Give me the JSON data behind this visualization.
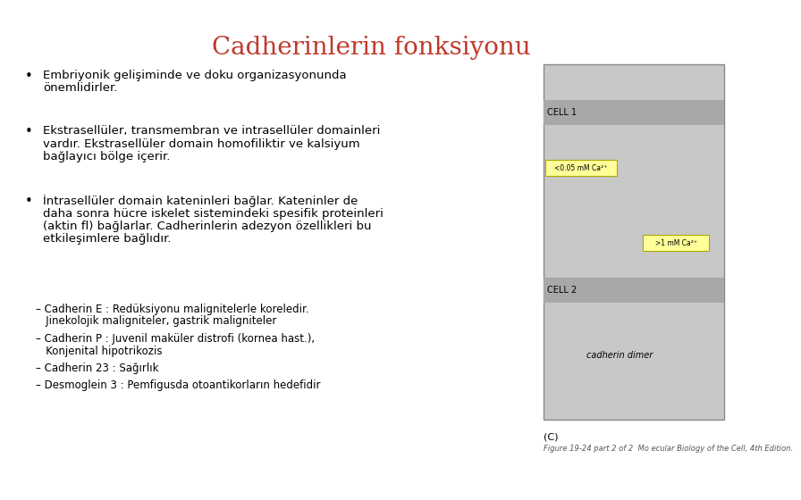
{
  "title": "Cadherinlerin fonksiyonu",
  "title_color": "#C0392B",
  "title_fontsize": 20,
  "background_color": "#FFFFFF",
  "bullet_points": [
    [
      "Embriyonik gelişiminde ve doku organizasyonunda",
      "önemlidirler."
    ],
    [
      "Ekstrasellüler, transmembran ve intrasellüler domainleri",
      "vardır. Ekstrasellüler domain homofiliktir ve kalsiyum",
      "bağlayıcı bölge içerir."
    ],
    [
      "İntrasellüler domain kateninleri bağlar. Kateninler de",
      "daha sonra hücre iskelet sistemindeki spesifik proteinleri",
      "(aktin fl) bağlarlar. Cadherinlerin adezyon özellikleri bu",
      "etkileşimlere bağlıdır."
    ]
  ],
  "sub_bullets": [
    [
      "– Cadherin E : Redüksiyonu malignitelerle koreledir.",
      "   Jinekolojik maligniteler, gastrik maligniteler"
    ],
    [
      "– Cadherin P : Juvenil maküler distrofi (kornea hast.),",
      "   Konjenital hipotrikozis"
    ],
    [
      "– Cadherin 23 : Sağırlık"
    ],
    [
      "– Desmoglein 3 : Pemfigusda otoantikorların hedefidir"
    ]
  ],
  "text_fontsize": 9.5,
  "sub_fontsize": 8.5,
  "bullet_color": "#000000",
  "text_color": "#000000",
  "caption": "(C)",
  "figure_caption": "Figure 19-24 part 2 of 2  Mo ecular Biology of the Cell, 4th Edition.",
  "img_bg_color": "#C8C8C8",
  "img_band_color": "#A8A8A8",
  "img_border_color": "#888888",
  "yellow_color": "#FFFF99",
  "yellow_border": "#AAAA00"
}
